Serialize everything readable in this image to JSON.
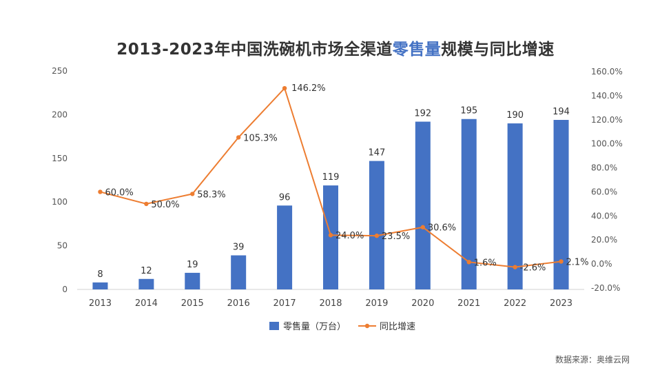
{
  "title": {
    "prefix": "2013-2023年中国洗碗机市场全渠道",
    "highlight": "零售量",
    "suffix": "规模与同比增速"
  },
  "source": "数据来源：奥维云网",
  "colors": {
    "bar": "#4472c4",
    "line": "#ed7d31",
    "highlight": "#4472c4"
  },
  "chart_data": {
    "type": "bar",
    "title": "2013-2023年中国洗碗机市场全渠道零售量规模与同比增速",
    "categories": [
      "2013",
      "2014",
      "2015",
      "2016",
      "2017",
      "2018",
      "2019",
      "2020",
      "2021",
      "2022",
      "2023"
    ],
    "series": [
      {
        "name": "零售量（万台）",
        "type": "bar",
        "axis": "left",
        "values": [
          8,
          12,
          19,
          39,
          96,
          119,
          147,
          192,
          195,
          190,
          194
        ],
        "labels": [
          "8",
          "12",
          "19",
          "39",
          "96",
          "119",
          "147",
          "192",
          "195",
          "190",
          "194"
        ]
      },
      {
        "name": "同比增速",
        "type": "line",
        "axis": "right",
        "values": [
          60.0,
          50.0,
          58.3,
          105.3,
          146.2,
          24.0,
          23.5,
          30.6,
          1.6,
          -2.6,
          2.1
        ],
        "labels": [
          "60.0%",
          "50.0%",
          "58.3%",
          "105.3%",
          "146.2%",
          "24.0%",
          "23.5%",
          "30.6%",
          "1.6%",
          "-2.6%",
          "2.1%"
        ]
      }
    ],
    "ylim_left": [
      0,
      250
    ],
    "yticks_left": [
      "0",
      "50",
      "100",
      "150",
      "200",
      "250"
    ],
    "ylim_right": [
      -20,
      160
    ],
    "yticks_right": [
      "-20.0%",
      "0.0%",
      "20.0%",
      "40.0%",
      "60.0%",
      "80.0%",
      "100.0%",
      "120.0%",
      "140.0%",
      "160.0%"
    ],
    "legend": [
      "零售量（万台）",
      "同比增速"
    ],
    "legend_position": "bottom",
    "grid": false
  }
}
